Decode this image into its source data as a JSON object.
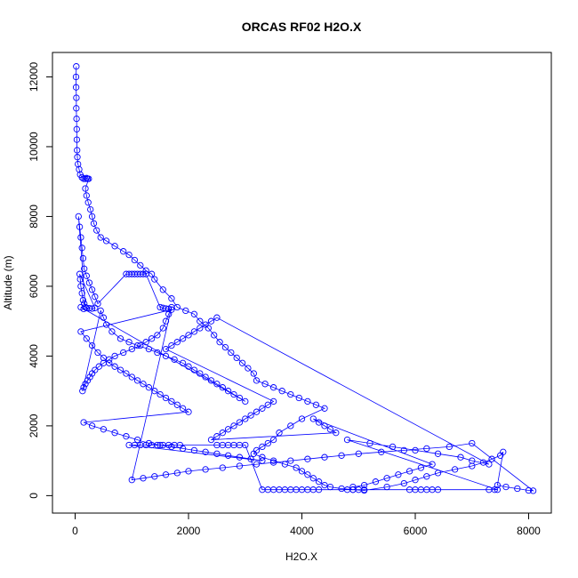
{
  "chart_data": {
    "type": "scatter",
    "title": "ORCAS RF02 H2O.X",
    "xlabel": "H2O.X",
    "ylabel": "Altitude (m)",
    "xlim": [
      -400,
      8400
    ],
    "ylim": [
      -500,
      12700
    ],
    "x_ticks": [
      0,
      2000,
      4000,
      6000,
      8000
    ],
    "y_ticks": [
      0,
      2000,
      4000,
      6000,
      8000,
      10000,
      12000
    ],
    "point_style": "open-circle",
    "connect_points": true,
    "grid": false,
    "legend": "none",
    "series": [
      {
        "color": "#0000ff",
        "points": [
          [
            20,
            12300
          ],
          [
            15,
            12000
          ],
          [
            18,
            11700
          ],
          [
            22,
            11400
          ],
          [
            20,
            11100
          ],
          [
            25,
            10800
          ],
          [
            28,
            10500
          ],
          [
            30,
            10200
          ],
          [
            35,
            9900
          ],
          [
            40,
            9700
          ],
          [
            50,
            9500
          ],
          [
            70,
            9350
          ],
          [
            90,
            9200
          ],
          [
            120,
            9120
          ],
          [
            150,
            9080
          ],
          [
            180,
            9080
          ],
          [
            200,
            9100
          ],
          [
            220,
            9080
          ],
          [
            240,
            9080
          ],
          [
            180,
            8800
          ],
          [
            200,
            8600
          ],
          [
            230,
            8400
          ],
          [
            270,
            8200
          ],
          [
            300,
            8000
          ],
          [
            330,
            7800
          ],
          [
            380,
            7600
          ],
          [
            450,
            7400
          ],
          [
            550,
            7300
          ],
          [
            700,
            7150
          ],
          [
            850,
            7000
          ],
          [
            950,
            6900
          ],
          [
            1050,
            6750
          ],
          [
            1150,
            6600
          ],
          [
            1250,
            6450
          ],
          [
            1350,
            6350
          ],
          [
            1400,
            6200
          ],
          [
            1550,
            5900
          ],
          [
            1700,
            5650
          ],
          [
            1800,
            5400
          ],
          [
            1950,
            5300
          ],
          [
            2100,
            5200
          ],
          [
            2200,
            5000
          ],
          [
            2350,
            4800
          ],
          [
            2450,
            4600
          ],
          [
            2550,
            4400
          ],
          [
            2650,
            4250
          ],
          [
            2750,
            4100
          ],
          [
            2850,
            3950
          ],
          [
            2950,
            3800
          ],
          [
            3050,
            3650
          ],
          [
            3150,
            3500
          ],
          [
            3200,
            3300
          ],
          [
            3350,
            3200
          ],
          [
            3500,
            3100
          ],
          [
            3650,
            3000
          ],
          [
            3800,
            2900
          ],
          [
            3950,
            2800
          ],
          [
            4100,
            2700
          ],
          [
            4250,
            2600
          ],
          [
            4400,
            2500
          ],
          [
            4000,
            2200
          ],
          [
            3800,
            2000
          ],
          [
            3600,
            1800
          ],
          [
            3500,
            1600
          ],
          [
            3400,
            1500
          ],
          [
            3300,
            1400
          ],
          [
            3200,
            1300
          ],
          [
            3150,
            1200
          ],
          [
            3300,
            1100
          ],
          [
            3500,
            1000
          ],
          [
            3700,
            900
          ],
          [
            3900,
            800
          ],
          [
            4000,
            700
          ],
          [
            4100,
            600
          ],
          [
            4200,
            500
          ],
          [
            4300,
            400
          ],
          [
            4400,
            300
          ],
          [
            4500,
            250
          ],
          [
            4700,
            200
          ],
          [
            4900,
            170
          ],
          [
            5100,
            150
          ],
          [
            5500,
            250
          ],
          [
            5800,
            350
          ],
          [
            6000,
            450
          ],
          [
            6200,
            550
          ],
          [
            6400,
            650
          ],
          [
            6700,
            750
          ],
          [
            7000,
            850
          ],
          [
            7200,
            950
          ],
          [
            7350,
            1050
          ],
          [
            7500,
            1150
          ],
          [
            7550,
            1250
          ],
          [
            7450,
            300
          ],
          [
            7600,
            250
          ],
          [
            7800,
            200
          ],
          [
            8000,
            150
          ],
          [
            8080,
            140
          ],
          [
            7000,
            1500
          ],
          [
            6600,
            1400
          ],
          [
            6200,
            1350
          ],
          [
            5800,
            1300
          ],
          [
            5400,
            1250
          ],
          [
            5000,
            1200
          ],
          [
            4700,
            1150
          ],
          [
            4400,
            1100
          ],
          [
            4100,
            1050
          ],
          [
            3800,
            1000
          ],
          [
            3500,
            950
          ],
          [
            3200,
            900
          ],
          [
            2900,
            850
          ],
          [
            2600,
            800
          ],
          [
            2300,
            750
          ],
          [
            2000,
            700
          ],
          [
            1800,
            650
          ],
          [
            1600,
            600
          ],
          [
            1400,
            550
          ],
          [
            1200,
            500
          ],
          [
            1000,
            450
          ],
          [
            1700,
            5400
          ],
          [
            1650,
            5200
          ],
          [
            1600,
            5000
          ],
          [
            1550,
            4800
          ],
          [
            1450,
            4600
          ],
          [
            1350,
            4500
          ],
          [
            1250,
            4400
          ],
          [
            1150,
            4300
          ],
          [
            1000,
            4200
          ],
          [
            850,
            4100
          ],
          [
            700,
            4000
          ],
          [
            600,
            3900
          ],
          [
            500,
            3800
          ],
          [
            420,
            3700
          ],
          [
            350,
            3600
          ],
          [
            300,
            3500
          ],
          [
            260,
            3400
          ],
          [
            220,
            3300
          ],
          [
            180,
            3200
          ],
          [
            150,
            3100
          ],
          [
            130,
            3000
          ],
          [
            450,
            5300
          ],
          [
            500,
            5100
          ],
          [
            550,
            4900
          ],
          [
            650,
            4700
          ],
          [
            800,
            4500
          ],
          [
            950,
            4400
          ],
          [
            1100,
            4300
          ],
          [
            1300,
            4200
          ],
          [
            1450,
            4100
          ],
          [
            1600,
            4000
          ],
          [
            1750,
            3900
          ],
          [
            1900,
            3800
          ],
          [
            2000,
            3700
          ],
          [
            2100,
            3600
          ],
          [
            2200,
            3500
          ],
          [
            2300,
            3400
          ],
          [
            2400,
            3300
          ],
          [
            2500,
            3200
          ],
          [
            2600,
            3100
          ],
          [
            2700,
            3000
          ],
          [
            2800,
            2900
          ],
          [
            2900,
            2800
          ],
          [
            3000,
            2700
          ],
          [
            100,
            5400
          ],
          [
            150,
            5350
          ],
          [
            200,
            5380
          ],
          [
            250,
            5370
          ],
          [
            300,
            5360
          ],
          [
            350,
            5380
          ],
          [
            80,
            6350
          ],
          [
            90,
            6200
          ],
          [
            100,
            6000
          ],
          [
            120,
            5800
          ],
          [
            140,
            5600
          ],
          [
            160,
            5500
          ],
          [
            180,
            5400
          ],
          [
            60,
            8000
          ],
          [
            80,
            7700
          ],
          [
            100,
            7400
          ],
          [
            120,
            7100
          ],
          [
            140,
            6800
          ],
          [
            160,
            6500
          ],
          [
            200,
            6300
          ],
          [
            250,
            6100
          ],
          [
            300,
            5900
          ],
          [
            350,
            5700
          ],
          [
            400,
            5500
          ],
          [
            900,
            6350
          ],
          [
            950,
            6350
          ],
          [
            1000,
            6350
          ],
          [
            1050,
            6350
          ],
          [
            1100,
            6350
          ],
          [
            1150,
            6350
          ],
          [
            1200,
            6350
          ],
          [
            1250,
            6350
          ],
          [
            1500,
            5400
          ],
          [
            1550,
            5380
          ],
          [
            1600,
            5360
          ],
          [
            1650,
            5350
          ],
          [
            1700,
            5330
          ],
          [
            100,
            4700
          ],
          [
            200,
            4500
          ],
          [
            300,
            4300
          ],
          [
            400,
            4100
          ],
          [
            500,
            3950
          ],
          [
            600,
            3800
          ],
          [
            700,
            3700
          ],
          [
            800,
            3600
          ],
          [
            900,
            3500
          ],
          [
            1000,
            3400
          ],
          [
            1100,
            3300
          ],
          [
            1200,
            3200
          ],
          [
            1300,
            3100
          ],
          [
            1400,
            3000
          ],
          [
            1500,
            2900
          ],
          [
            1600,
            2800
          ],
          [
            1700,
            2700
          ],
          [
            1800,
            2600
          ],
          [
            1900,
            2500
          ],
          [
            2000,
            2400
          ],
          [
            150,
            2100
          ],
          [
            300,
            2000
          ],
          [
            500,
            1900
          ],
          [
            700,
            1800
          ],
          [
            900,
            1700
          ],
          [
            1100,
            1600
          ],
          [
            1300,
            1500
          ],
          [
            1500,
            1450
          ],
          [
            1700,
            1400
          ],
          [
            1900,
            1350
          ],
          [
            2100,
            1300
          ],
          [
            2300,
            1250
          ],
          [
            2500,
            1200
          ],
          [
            2700,
            1150
          ],
          [
            2900,
            1100
          ],
          [
            3100,
            1050
          ],
          [
            3300,
            1000
          ],
          [
            950,
            1450
          ],
          [
            1050,
            1450
          ],
          [
            1150,
            1450
          ],
          [
            1250,
            1450
          ],
          [
            1350,
            1450
          ],
          [
            1450,
            1450
          ],
          [
            1550,
            1450
          ],
          [
            1650,
            1450
          ],
          [
            1750,
            1450
          ],
          [
            1850,
            1450
          ],
          [
            2500,
            1450
          ],
          [
            2600,
            1450
          ],
          [
            2700,
            1450
          ],
          [
            2800,
            1450
          ],
          [
            2900,
            1450
          ],
          [
            3000,
            1450
          ],
          [
            3300,
            170
          ],
          [
            3400,
            170
          ],
          [
            3500,
            170
          ],
          [
            3600,
            170
          ],
          [
            3700,
            170
          ],
          [
            3800,
            170
          ],
          [
            3900,
            170
          ],
          [
            4000,
            170
          ],
          [
            4100,
            170
          ],
          [
            4200,
            170
          ],
          [
            4300,
            170
          ],
          [
            4800,
            170
          ],
          [
            4900,
            170
          ],
          [
            5000,
            170
          ],
          [
            5100,
            170
          ],
          [
            5900,
            170
          ],
          [
            6000,
            170
          ],
          [
            6100,
            170
          ],
          [
            6200,
            170
          ],
          [
            6300,
            170
          ],
          [
            6400,
            170
          ],
          [
            7300,
            170
          ],
          [
            7400,
            170
          ],
          [
            7450,
            170
          ],
          [
            4800,
            1600
          ],
          [
            5200,
            1500
          ],
          [
            5600,
            1400
          ],
          [
            6000,
            1300
          ],
          [
            6400,
            1200
          ],
          [
            6800,
            1100
          ],
          [
            7000,
            1000
          ],
          [
            7300,
            900
          ],
          [
            2500,
            5100
          ],
          [
            2400,
            5000
          ],
          [
            2300,
            4900
          ],
          [
            2200,
            4800
          ],
          [
            2100,
            4700
          ],
          [
            2000,
            4600
          ],
          [
            1900,
            4500
          ],
          [
            1800,
            4400
          ],
          [
            1700,
            4300
          ],
          [
            1600,
            4200
          ],
          [
            3500,
            2700
          ],
          [
            3400,
            2600
          ],
          [
            3300,
            2500
          ],
          [
            3200,
            2400
          ],
          [
            3100,
            2300
          ],
          [
            3000,
            2200
          ],
          [
            2900,
            2100
          ],
          [
            2800,
            2000
          ],
          [
            2700,
            1900
          ],
          [
            2600,
            1800
          ],
          [
            2500,
            1700
          ],
          [
            2400,
            1600
          ],
          [
            4600,
            1800
          ],
          [
            4500,
            1900
          ],
          [
            4400,
            2000
          ],
          [
            4300,
            2100
          ],
          [
            4200,
            2200
          ],
          [
            6300,
            900
          ],
          [
            6100,
            800
          ],
          [
            5900,
            700
          ],
          [
            5700,
            600
          ],
          [
            5500,
            500
          ],
          [
            5300,
            400
          ],
          [
            5100,
            300
          ],
          [
            4900,
            250
          ]
        ]
      }
    ]
  }
}
